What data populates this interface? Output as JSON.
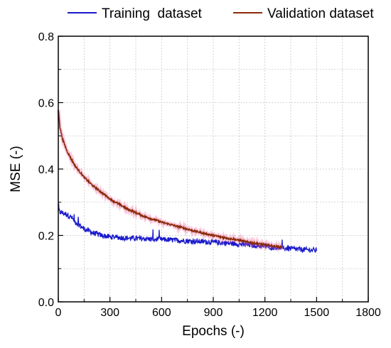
{
  "chart_data": {
    "type": "line",
    "title": "",
    "xlabel": "Epochs (-)",
    "ylabel": "MSE (-)",
    "xlim": [
      0,
      1800
    ],
    "ylim": [
      0.0,
      0.8
    ],
    "x_ticks": [
      0,
      300,
      600,
      900,
      1200,
      1500,
      1800
    ],
    "x_tick_labels": [
      "0",
      "300",
      "600",
      "900",
      "1200",
      "1500",
      "1800"
    ],
    "y_ticks": [
      0.0,
      0.2,
      0.4,
      0.6,
      0.8
    ],
    "y_tick_labels": [
      "0.0",
      "0.2",
      "0.4",
      "0.6",
      "0.8"
    ],
    "grid": true,
    "legend_position": "top",
    "series": [
      {
        "name": "Training  dataset",
        "color": "#1a1acc",
        "x": [
          0,
          10,
          25,
          50,
          75,
          100,
          150,
          200,
          250,
          300,
          400,
          500,
          600,
          700,
          800,
          900,
          1000,
          1100,
          1200,
          1300,
          1400,
          1500
        ],
        "y": [
          0.275,
          0.27,
          0.268,
          0.263,
          0.255,
          0.24,
          0.22,
          0.208,
          0.2,
          0.196,
          0.192,
          0.19,
          0.188,
          0.185,
          0.182,
          0.18,
          0.176,
          0.172,
          0.167,
          0.162,
          0.158,
          0.155
        ]
      },
      {
        "name": "Validation dataset",
        "color": "#8b2a0a",
        "x": [
          0,
          10,
          25,
          50,
          75,
          100,
          150,
          200,
          250,
          300,
          400,
          500,
          600,
          700,
          800,
          900,
          1000,
          1100,
          1200,
          1300
        ],
        "y": [
          0.58,
          0.525,
          0.49,
          0.455,
          0.43,
          0.408,
          0.375,
          0.35,
          0.33,
          0.31,
          0.28,
          0.257,
          0.24,
          0.226,
          0.212,
          0.2,
          0.19,
          0.18,
          0.172,
          0.164
        ]
      }
    ]
  }
}
